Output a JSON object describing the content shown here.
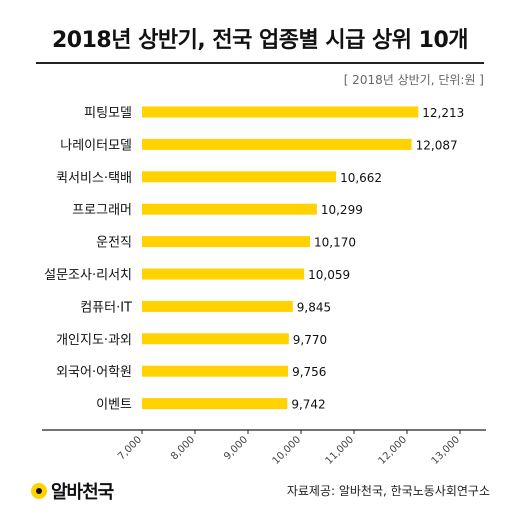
{
  "header": {
    "title": "2018년 상반기, 전국 업종별 시급 상위 10개",
    "subtitle": "[ 2018년 상반기, 단위:원 ]"
  },
  "footer": {
    "logo_text": "알바천국",
    "source": "자료제공: 알바천국, 한국노동사회연구소"
  },
  "colors": {
    "bar": "#FFD200",
    "axis": "#222222"
  },
  "chart_data": {
    "type": "bar",
    "orientation": "horizontal",
    "title": "2018년 상반기, 전국 업종별 시급 상위 10개",
    "unit": "원",
    "categories": [
      "피팅모델",
      "나레이터모델",
      "퀵서비스·택배",
      "프로그래머",
      "운전직",
      "설문조사·리서치",
      "컴퓨터·IT",
      "개인지도·과외",
      "외국어·어학원",
      "이벤트"
    ],
    "values": [
      12213,
      12087,
      10662,
      10299,
      10170,
      10059,
      9845,
      9770,
      9756,
      9742
    ],
    "value_labels": [
      "12,213",
      "12,087",
      "10,662",
      "10,299",
      "10,170",
      "10,059",
      "9,845",
      "9,770",
      "9,756",
      "9,742"
    ],
    "xlim": [
      7000,
      13000
    ],
    "xticks": [
      7000,
      8000,
      9000,
      10000,
      11000,
      12000,
      13000
    ],
    "xtick_labels": [
      "7,000",
      "8,000",
      "9,000",
      "10,000",
      "11,000",
      "12,000",
      "13,000"
    ],
    "grid": false
  }
}
